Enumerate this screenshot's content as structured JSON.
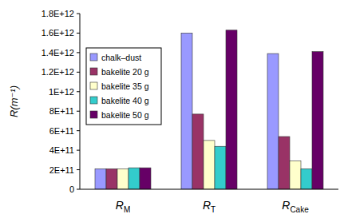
{
  "chart_data": {
    "type": "bar",
    "y_label": "R(m⁻¹)",
    "categories": [
      "RM",
      "RT",
      "RCake"
    ],
    "series": [
      {
        "name": "chalk–dust",
        "color": "#9999ff",
        "values": [
          210000000000,
          1600000000000,
          1390000000000
        ]
      },
      {
        "name": "bakelite 20 g",
        "color": "#993366",
        "values": [
          210000000000,
          770000000000,
          540000000000
        ]
      },
      {
        "name": "bakelite 35 g",
        "color": "#ffffcc",
        "values": [
          210000000000,
          500000000000,
          290000000000
        ]
      },
      {
        "name": "bakelite 40 g",
        "color": "#33cccc",
        "values": [
          220000000000,
          440000000000,
          210000000000
        ]
      },
      {
        "name": "bakelite 50 g",
        "color": "#660066",
        "values": [
          220000000000,
          1630000000000,
          1410000000000
        ]
      }
    ],
    "ylim": [
      0,
      1800000000000
    ],
    "yticks": [
      0,
      {
        "value": 200000000000,
        "label": "2E+11"
      },
      {
        "value": 400000000000,
        "label": "4E+11"
      },
      {
        "value": 600000000000,
        "label": "6E+11"
      },
      {
        "value": 800000000000,
        "label": "8E+11"
      },
      {
        "value": 1000000000000,
        "label": "1E+12"
      },
      {
        "value": 1200000000000,
        "label": "1.2E+12"
      },
      {
        "value": 1400000000000,
        "label": "1.4E+12"
      },
      {
        "value": 1600000000000,
        "label": "1.6E+12"
      },
      {
        "value": 1800000000000,
        "label": "1.8E+12"
      }
    ],
    "grid": false,
    "legend": "upper-left"
  }
}
